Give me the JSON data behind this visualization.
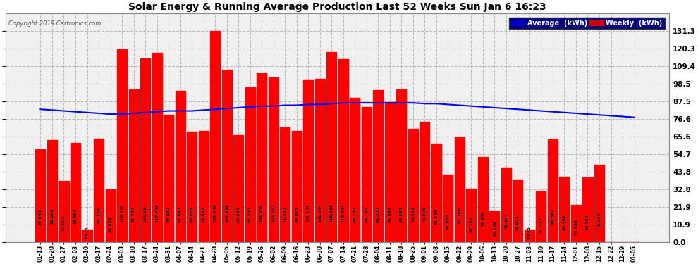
{
  "title": "Solar Energy & Running Average Production Last 52 Weeks Sun Jan 6 16:23",
  "copyright": "Copyright 2019 Cartronics.com",
  "bar_color": "#ff0000",
  "avg_line_color": "#0000ff",
  "background_color": "#ffffff",
  "plot_bg_color": "#f0f0f0",
  "grid_color": "#bbbbbb",
  "legend_avg_color": "#0000cc",
  "legend_weekly_color": "#cc0000",
  "categories": [
    "01-13",
    "01-20",
    "01-27",
    "02-03",
    "02-10",
    "02-17",
    "02-24",
    "03-03",
    "03-10",
    "03-17",
    "03-24",
    "03-31",
    "04-07",
    "04-14",
    "04-21",
    "04-28",
    "05-05",
    "05-12",
    "05-19",
    "05-26",
    "06-02",
    "06-09",
    "06-16",
    "06-23",
    "06-30",
    "07-07",
    "07-14",
    "07-21",
    "07-28",
    "08-04",
    "08-11",
    "08-18",
    "08-25",
    "09-01",
    "09-08",
    "09-15",
    "09-22",
    "09-29",
    "10-06",
    "10-13",
    "10-20",
    "10-27",
    "11-03",
    "11-10",
    "11-17",
    "11-24",
    "12-01",
    "12-08",
    "12-15",
    "12-22",
    "12-29",
    "01-05"
  ],
  "weekly_values": [
    57.64,
    63.296,
    37.972,
    61.694,
    7.926,
    64.12,
    32.856,
    120.02,
    94.78,
    114.184,
    117.748,
    78.972,
    93.84,
    68.668,
    68.96,
    131.28,
    107.136,
    66.332,
    96.392,
    104.968,
    102.512,
    71.432,
    68.976,
    101.104,
    101.224,
    118.256,
    113.864,
    89.76,
    83.76,
    94.3,
    86.968,
    94.696,
    70.432,
    74.908,
    61.156,
    41.852,
    65.1,
    33.1,
    52.956,
    19.148,
    46.104,
    38.924,
    7.84,
    31.272,
    63.584,
    40.408,
    23.2,
    40.2,
    48.16,
    0.0,
    0.0,
    0.0
  ],
  "avg_values": [
    82.5,
    82.0,
    81.5,
    81.0,
    80.5,
    80.0,
    79.5,
    79.5,
    80.0,
    80.5,
    81.0,
    81.5,
    81.5,
    81.5,
    82.0,
    82.5,
    83.0,
    83.5,
    84.0,
    84.5,
    84.5,
    85.0,
    85.0,
    85.5,
    85.5,
    86.0,
    86.5,
    86.5,
    86.5,
    86.5,
    86.5,
    86.5,
    86.5,
    86.0,
    86.0,
    85.5,
    85.0,
    84.5,
    84.0,
    83.5,
    83.0,
    82.5,
    82.0,
    81.5,
    81.0,
    80.5,
    80.0,
    79.5,
    79.0,
    78.5,
    78.0,
    77.5
  ],
  "ylim": [
    0.0,
    142.0
  ],
  "ytick_values": [
    0.0,
    10.9,
    21.9,
    32.8,
    43.8,
    54.7,
    65.6,
    76.6,
    87.5,
    98.5,
    109.4,
    120.3,
    131.3
  ]
}
